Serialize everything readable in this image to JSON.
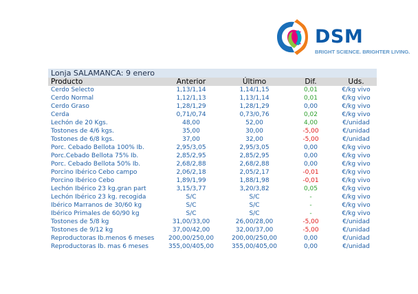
{
  "logo": {
    "name": "DSM",
    "tagline": "BRIGHT SCIENCE. BRIGHTER LIVING."
  },
  "title": "Lonja SALAMANCA: 9 enero",
  "headers": {
    "producto": "Producto",
    "anterior": "Anterior",
    "ultimo": "Último",
    "dif": "Dif.",
    "uds": "Uds."
  },
  "rows": [
    {
      "producto": "Cerdo Selecto",
      "anterior": "1,13/1,14",
      "ultimo": "1,14/1,15",
      "dif": "0,01",
      "sign": "pos",
      "uds": "€/kg vivo"
    },
    {
      "producto": "Cerdo Normal",
      "anterior": "1,12/1,13",
      "ultimo": "1,13/1,14",
      "dif": "0,01",
      "sign": "pos",
      "uds": "€/kg vivo"
    },
    {
      "producto": "Cerdo Graso",
      "anterior": "1,28/1,29",
      "ultimo": "1,28/1,29",
      "dif": "0,00",
      "sign": "zero",
      "uds": "€/kg vivo"
    },
    {
      "producto": "Cerda",
      "anterior": "0,71/0,74",
      "ultimo": "0,73/0,76",
      "dif": "0,02",
      "sign": "pos",
      "uds": "€/kg vivo"
    },
    {
      "producto": "Lechón de 20 Kgs.",
      "anterior": "48,00",
      "ultimo": "52,00",
      "dif": "4,00",
      "sign": "pos",
      "uds": "€/unidad"
    },
    {
      "producto": "Tostones de 4/6 kgs.",
      "anterior": "35,00",
      "ultimo": "30,00",
      "dif": "-5,00",
      "sign": "neg",
      "uds": "€/unidad"
    },
    {
      "producto": "Tostones de 6/8 kgs.",
      "anterior": "37,00",
      "ultimo": "32,00",
      "dif": "-5,00",
      "sign": "neg",
      "uds": "€/unidad"
    },
    {
      "producto": "Porc. Cebado Bellota 100% Ib.",
      "anterior": "2,95/3,05",
      "ultimo": "2,95/3,05",
      "dif": "0,00",
      "sign": "zero",
      "uds": "€/kg vivo"
    },
    {
      "producto": "Porc.Cebado Bellota 75% Ib.",
      "anterior": "2,85/2,95",
      "ultimo": "2,85/2,95",
      "dif": "0,00",
      "sign": "zero",
      "uds": "€/kg vivo"
    },
    {
      "producto": "Porc. Cebado Bellota 50% Ib.",
      "anterior": "2,68/2,88",
      "ultimo": "2,68/2,88",
      "dif": "0,00",
      "sign": "zero",
      "uds": "€/kg vivo"
    },
    {
      "producto": "Porcino Ibérico Cebo campo",
      "anterior": "2,06/2,18",
      "ultimo": "2,05/2,17",
      "dif": "-0,01",
      "sign": "neg",
      "uds": "€/kg vivo"
    },
    {
      "producto": "Porcino Ibérico Cebo",
      "anterior": "1,89/1,99",
      "ultimo": "1,88/1,98",
      "dif": "-0,01",
      "sign": "neg",
      "uds": "€/kg vivo"
    },
    {
      "producto": "Lechón Ibérico 23 kg.gran part",
      "anterior": "3,15/3,77",
      "ultimo": "3,20/3,82",
      "dif": "0,05",
      "sign": "pos",
      "uds": "€/kg vivo"
    },
    {
      "producto": "Lechón Ibérico 23 kg. recogida",
      "anterior": "S/C",
      "ultimo": "S/C",
      "dif": "-",
      "sign": "pos",
      "uds": "€/kg vivo"
    },
    {
      "producto": "Ibérico Marranos de 30/60 kg",
      "anterior": "S/C",
      "ultimo": "S/C",
      "dif": "-",
      "sign": "pos",
      "uds": "€/kg vivo"
    },
    {
      "producto": "Ibérico Primales de 60/90 kg",
      "anterior": "S/C",
      "ultimo": "S/C",
      "dif": "-",
      "sign": "pos",
      "uds": "€/kg vivo"
    },
    {
      "producto": "Tostones de 5/8 kg",
      "anterior": "31,00/33,00",
      "ultimo": "26,00/28,00",
      "dif": "-5,00",
      "sign": "neg",
      "uds": "€/unidad"
    },
    {
      "producto": "Tostones de 9/12 kg",
      "anterior": "37,00/42,00",
      "ultimo": "32,00/37,00",
      "dif": "-5,00",
      "sign": "neg",
      "uds": "€/unidad"
    },
    {
      "producto": "Reproductoras Ib.menos 6 meses",
      "anterior": "200,00/250,00",
      "ultimo": "200,00/250,00",
      "dif": "0,00",
      "sign": "zero",
      "uds": "€/unidad"
    },
    {
      "producto": "Reproductoras Ib. mas 6 meses",
      "anterior": "355,00/405,00",
      "ultimo": "355,00/405,00",
      "dif": "0,00",
      "sign": "zero",
      "uds": "€/unidad"
    }
  ],
  "colors": {
    "text": "#1f5fa6",
    "positive": "#2ea02e",
    "negative": "#e01b1b",
    "title_bg": "#dce6f1",
    "header_bg": "#d9d9d9",
    "brand": "#0b5aa8"
  }
}
